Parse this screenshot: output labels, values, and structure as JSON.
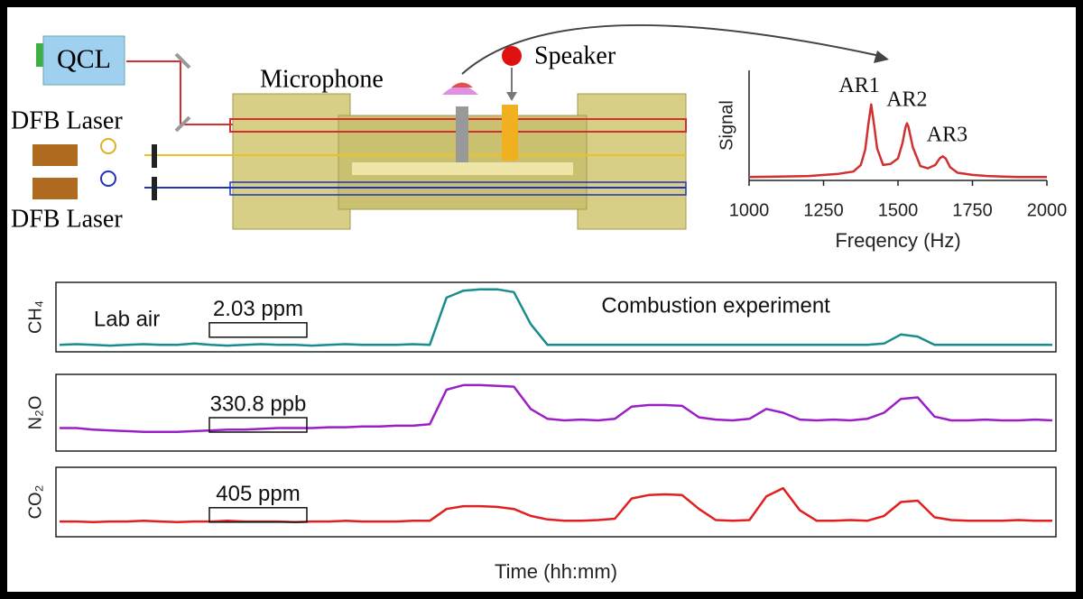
{
  "diagram": {
    "labels": {
      "qcl": "QCL",
      "dfb_top": "DFB Laser",
      "dfb_bottom": "DFB Laser",
      "microphone": "Microphone",
      "speaker": "Speaker"
    }
  },
  "chart_data": [
    {
      "type": "line",
      "ylabel": "Signal",
      "xlabel": "Freqency (Hz)",
      "x": [
        1000,
        1100,
        1200,
        1300,
        1350,
        1375,
        1390,
        1400,
        1410,
        1420,
        1430,
        1450,
        1475,
        1500,
        1515,
        1525,
        1530,
        1535,
        1550,
        1575,
        1600,
        1625,
        1640,
        1650,
        1660,
        1675,
        1700,
        1750,
        1800,
        1900,
        2000
      ],
      "series": [
        {
          "color": "#d03030",
          "values": [
            0.03,
            0.035,
            0.04,
            0.06,
            0.08,
            0.14,
            0.28,
            0.5,
            0.69,
            0.5,
            0.29,
            0.14,
            0.15,
            0.2,
            0.34,
            0.48,
            0.52,
            0.49,
            0.3,
            0.13,
            0.11,
            0.14,
            0.2,
            0.22,
            0.2,
            0.12,
            0.07,
            0.05,
            0.04,
            0.03,
            0.03
          ]
        }
      ],
      "xlim": [
        1000,
        2000
      ],
      "xticks": [
        1000,
        1250,
        1500,
        1750,
        2000
      ],
      "ylim": [
        0,
        1
      ],
      "annotations": [
        {
          "text": "AR1",
          "x": 1370,
          "y": 0.85
        },
        {
          "text": "AR2",
          "x": 1530,
          "y": 0.72
        },
        {
          "text": "AR3",
          "x": 1665,
          "y": 0.4
        }
      ]
    },
    {
      "type": "line",
      "ylabel": "CH₄",
      "ylim": [
        0,
        1
      ],
      "series": [
        {
          "color": "#1a8c8c",
          "values": [
            0.1,
            0.11,
            0.1,
            0.09,
            0.1,
            0.11,
            0.1,
            0.1,
            0.12,
            0.1,
            0.09,
            0.1,
            0.11,
            0.1,
            0.1,
            0.09,
            0.1,
            0.11,
            0.1,
            0.1,
            0.1,
            0.11,
            0.1,
            0.78,
            0.88,
            0.9,
            0.9,
            0.86,
            0.4,
            0.1,
            0.1,
            0.1,
            0.1,
            0.1,
            0.1,
            0.1,
            0.1,
            0.1,
            0.1,
            0.1,
            0.1,
            0.1,
            0.1,
            0.1,
            0.1,
            0.1,
            0.1,
            0.1,
            0.1,
            0.12,
            0.25,
            0.22,
            0.1,
            0.1,
            0.1,
            0.1,
            0.1,
            0.1,
            0.1,
            0.1
          ]
        }
      ],
      "annotations": [
        {
          "text": "Lab air",
          "x": 4,
          "y": 0.45
        },
        {
          "text": "2.03 ppm",
          "x": 11.8,
          "y": 0.6,
          "boxed": true
        },
        {
          "text": "Combustion experiment",
          "x": 39,
          "y": 0.65
        }
      ]
    },
    {
      "type": "line",
      "ylabel": "N₂O",
      "ylim": [
        0,
        1
      ],
      "series": [
        {
          "color": "#9b1fc7",
          "values": [
            0.3,
            0.3,
            0.28,
            0.27,
            0.26,
            0.25,
            0.25,
            0.25,
            0.26,
            0.27,
            0.28,
            0.28,
            0.29,
            0.3,
            0.3,
            0.3,
            0.31,
            0.31,
            0.32,
            0.32,
            0.33,
            0.33,
            0.35,
            0.8,
            0.86,
            0.86,
            0.85,
            0.84,
            0.55,
            0.42,
            0.4,
            0.41,
            0.4,
            0.42,
            0.58,
            0.6,
            0.6,
            0.59,
            0.44,
            0.41,
            0.4,
            0.42,
            0.55,
            0.5,
            0.41,
            0.4,
            0.41,
            0.4,
            0.42,
            0.5,
            0.68,
            0.7,
            0.45,
            0.4,
            0.4,
            0.41,
            0.4,
            0.4,
            0.41,
            0.4
          ]
        }
      ],
      "annotations": [
        {
          "text": "330.8 ppb",
          "x": 11.8,
          "y": 0.6,
          "boxed": true
        }
      ]
    },
    {
      "type": "line",
      "ylabel": "CO₂",
      "ylim": [
        0,
        1
      ],
      "xlabel": "Time (hh:mm)",
      "series": [
        {
          "color": "#e02020",
          "values": [
            0.22,
            0.22,
            0.21,
            0.22,
            0.22,
            0.23,
            0.22,
            0.21,
            0.22,
            0.22,
            0.23,
            0.22,
            0.22,
            0.22,
            0.21,
            0.22,
            0.22,
            0.23,
            0.22,
            0.22,
            0.22,
            0.23,
            0.23,
            0.4,
            0.44,
            0.44,
            0.43,
            0.4,
            0.3,
            0.25,
            0.23,
            0.23,
            0.24,
            0.26,
            0.55,
            0.6,
            0.61,
            0.6,
            0.4,
            0.24,
            0.23,
            0.24,
            0.58,
            0.7,
            0.38,
            0.23,
            0.23,
            0.24,
            0.23,
            0.3,
            0.5,
            0.52,
            0.28,
            0.24,
            0.23,
            0.23,
            0.23,
            0.24,
            0.23,
            0.23
          ]
        }
      ],
      "annotations": [
        {
          "text": "405 ppm",
          "x": 11.8,
          "y": 0.6,
          "boxed": true
        }
      ]
    }
  ]
}
